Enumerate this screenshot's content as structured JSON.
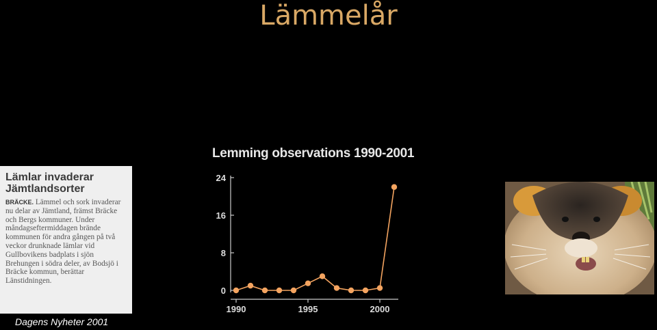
{
  "title": "Lämmelår",
  "clipping": {
    "headline": "Lämlar invaderar Jämtlandsorter",
    "dateline": "BRÄCKE.",
    "body": "Lämmel och sork invaderar nu delar av Jämtland, främst Bräcke och Bergs kommuner. Under måndagseftermiddagen brände kommunen för andra gången på två veckor drunknade lämlar vid Gullbovikens badplats i sjön Brehungen i södra deler, av Bodsjö i Bräcke kommun, berättar Länstidningen."
  },
  "caption": "Dagens Nyheter 2001",
  "chart_data": {
    "type": "line",
    "title": "Lemming observations 1990-2001",
    "x": [
      1990,
      1991,
      1992,
      1993,
      1994,
      1995,
      1996,
      1997,
      1998,
      1999,
      2000,
      2001
    ],
    "values": [
      0,
      1,
      0,
      0,
      0,
      1.5,
      3,
      0.5,
      0,
      0,
      0.5,
      22
    ],
    "yticks": [
      0,
      8,
      16,
      24
    ],
    "xticks": [
      1990,
      1995,
      2000
    ],
    "ylim": [
      0,
      24
    ],
    "xlim": [
      1990,
      2001
    ],
    "color": "#f4a460",
    "grid": false
  },
  "photo": {
    "icon": "lemming-photo"
  }
}
